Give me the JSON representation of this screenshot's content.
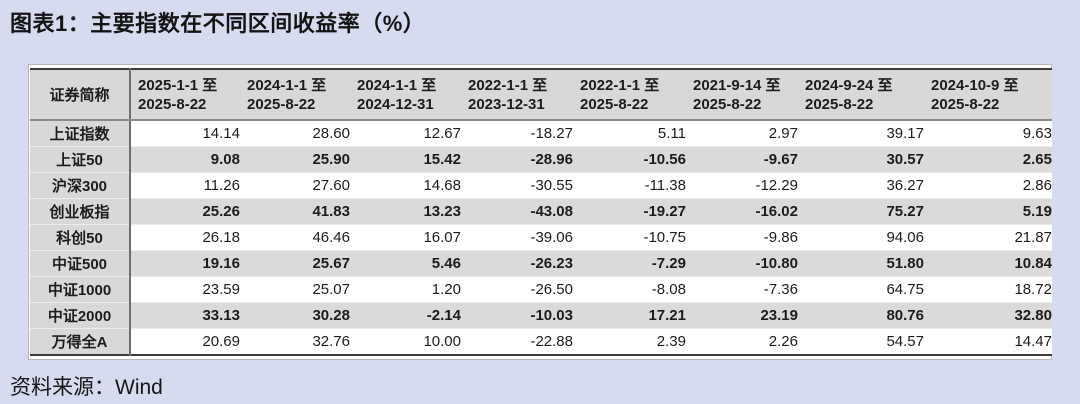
{
  "page": {
    "source": "资料来源：Wind"
  },
  "chart_data": {
    "type": "table",
    "title": "图表1：主要指数在不同区间收益率（%）",
    "corner_header": "证券简称",
    "unit": "%",
    "columns": [
      {
        "line1": "2025-1-1 至",
        "line2": "2025-8-22"
      },
      {
        "line1": "2024-1-1 至",
        "line2": "2025-8-22"
      },
      {
        "line1": "2024-1-1 至",
        "line2": "2024-12-31"
      },
      {
        "line1": "2022-1-1 至",
        "line2": "2023-12-31"
      },
      {
        "line1": "2022-1-1 至",
        "line2": "2025-8-22"
      },
      {
        "line1": "2021-9-14 至",
        "line2": "2025-8-22"
      },
      {
        "line1": "2024-9-24 至",
        "line2": "2025-8-22"
      },
      {
        "line1": "2024-10-9 至",
        "line2": "2025-8-22"
      }
    ],
    "rows": [
      {
        "name": "上证指数",
        "values": [
          14.14,
          28.6,
          12.67,
          -18.27,
          5.11,
          2.97,
          39.17,
          9.63
        ]
      },
      {
        "name": "上证50",
        "values": [
          9.08,
          25.9,
          15.42,
          -28.96,
          -10.56,
          -9.67,
          30.57,
          2.65
        ]
      },
      {
        "name": "沪深300",
        "values": [
          11.26,
          27.6,
          14.68,
          -30.55,
          -11.38,
          -12.29,
          36.27,
          2.86
        ]
      },
      {
        "name": "创业板指",
        "values": [
          25.26,
          41.83,
          13.23,
          -43.08,
          -19.27,
          -16.02,
          75.27,
          5.19
        ]
      },
      {
        "name": "科创50",
        "values": [
          26.18,
          46.46,
          16.07,
          -39.06,
          -10.75,
          -9.86,
          94.06,
          21.87
        ]
      },
      {
        "name": "中证500",
        "values": [
          19.16,
          25.67,
          5.46,
          -26.23,
          -7.29,
          -10.8,
          51.8,
          10.84
        ]
      },
      {
        "name": "中证1000",
        "values": [
          23.59,
          25.07,
          1.2,
          -26.5,
          -8.08,
          -7.36,
          64.75,
          18.72
        ]
      },
      {
        "name": "中证2000",
        "values": [
          33.13,
          30.28,
          -2.14,
          -10.03,
          17.21,
          23.19,
          80.76,
          32.8
        ]
      },
      {
        "name": "万得全A",
        "values": [
          20.69,
          32.76,
          10.0,
          -22.88,
          2.39,
          2.26,
          54.57,
          14.47
        ]
      }
    ]
  }
}
